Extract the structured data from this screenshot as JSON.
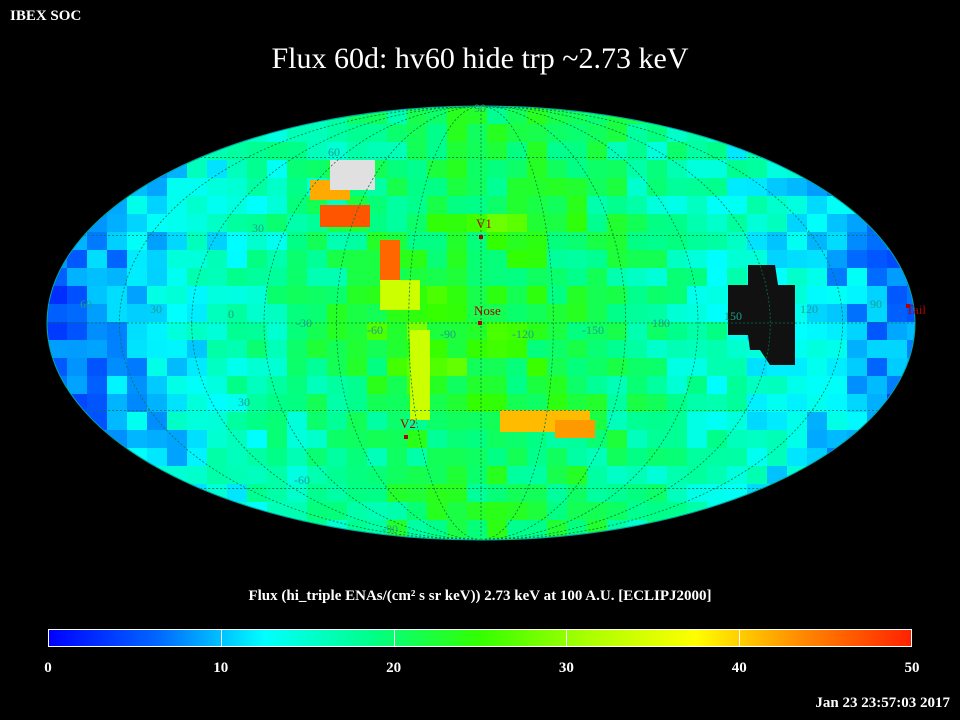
{
  "brand": "IBEX SOC",
  "title": "Flux   60d: hv60 hide trp ~2.73 keV",
  "colorbar": {
    "label": "Flux (hi_triple ENAs/(cm² s sr keV))  2.73 keV at 100 A.U. [ECLIPJ2000]",
    "ticks": [
      "0",
      "10",
      "20",
      "30",
      "40",
      "50"
    ],
    "colors": [
      "#0000ff",
      "#0066ff",
      "#00ffff",
      "#00ff88",
      "#33ff00",
      "#aaff00",
      "#ffff00",
      "#ff8800",
      "#ff2200"
    ]
  },
  "timestamp": "Jan 23 23:57:03 2017",
  "map": {
    "projection": "Mollweide (ecliptic J2000)",
    "longitude_labels": [
      "60",
      "30",
      "0",
      "-30",
      "-60",
      "-90",
      "-120",
      "-150",
      "180",
      "150",
      "120",
      "90"
    ],
    "latitude_labels": [
      "90",
      "60",
      "30",
      "30",
      "-60",
      "-90"
    ],
    "markers": [
      {
        "name": "V1",
        "lon": -105,
        "lat": 35
      },
      {
        "name": "Nose",
        "lon": -105,
        "lat": 5
      },
      {
        "name": "V2",
        "lon": -147,
        "lat": -32
      },
      {
        "name": "Tail",
        "lon": 75,
        "lat": -5
      }
    ]
  }
}
